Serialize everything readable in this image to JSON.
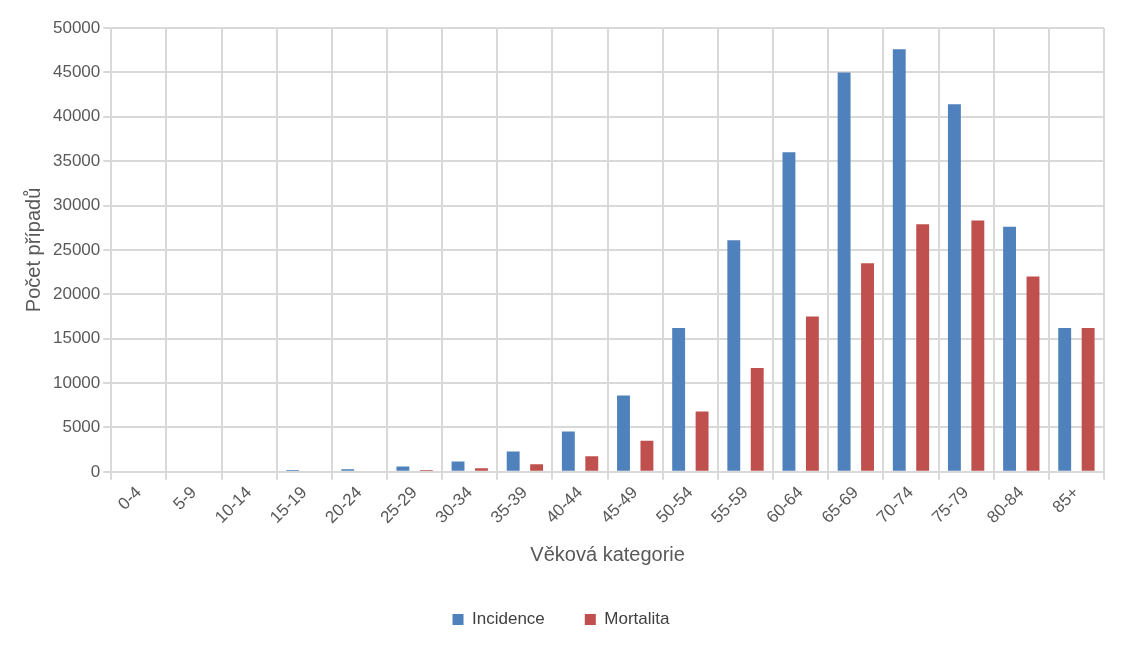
{
  "chart_data": {
    "type": "bar",
    "xlabel": "Věková kategorie",
    "ylabel": "Počet případů",
    "categories": [
      "0-4",
      "5-9",
      "10-14",
      "15-19",
      "20-24",
      "25-29",
      "30-34",
      "35-39",
      "40-44",
      "45-49",
      "50-54",
      "55-59",
      "60-64",
      "65-69",
      "70-74",
      "75-79",
      "80-84",
      "85+"
    ],
    "series": [
      {
        "name": "Incidence",
        "color": "#4f81bd",
        "values": [
          0,
          0,
          0,
          200,
          300,
          600,
          1150,
          2300,
          4550,
          8600,
          16200,
          26100,
          36000,
          45000,
          47600,
          41400,
          27600,
          16200
        ]
      },
      {
        "name": "Mortalita",
        "color": "#c0504d",
        "values": [
          0,
          0,
          0,
          0,
          0,
          200,
          400,
          850,
          1750,
          3500,
          6800,
          11700,
          17500,
          23500,
          27900,
          28300,
          22000,
          16200
        ]
      }
    ],
    "ylim": [
      0,
      50000
    ],
    "yticks": [
      0,
      5000,
      10000,
      15000,
      20000,
      25000,
      30000,
      35000,
      40000,
      45000,
      50000
    ],
    "grid": true,
    "legend": "bottom"
  }
}
